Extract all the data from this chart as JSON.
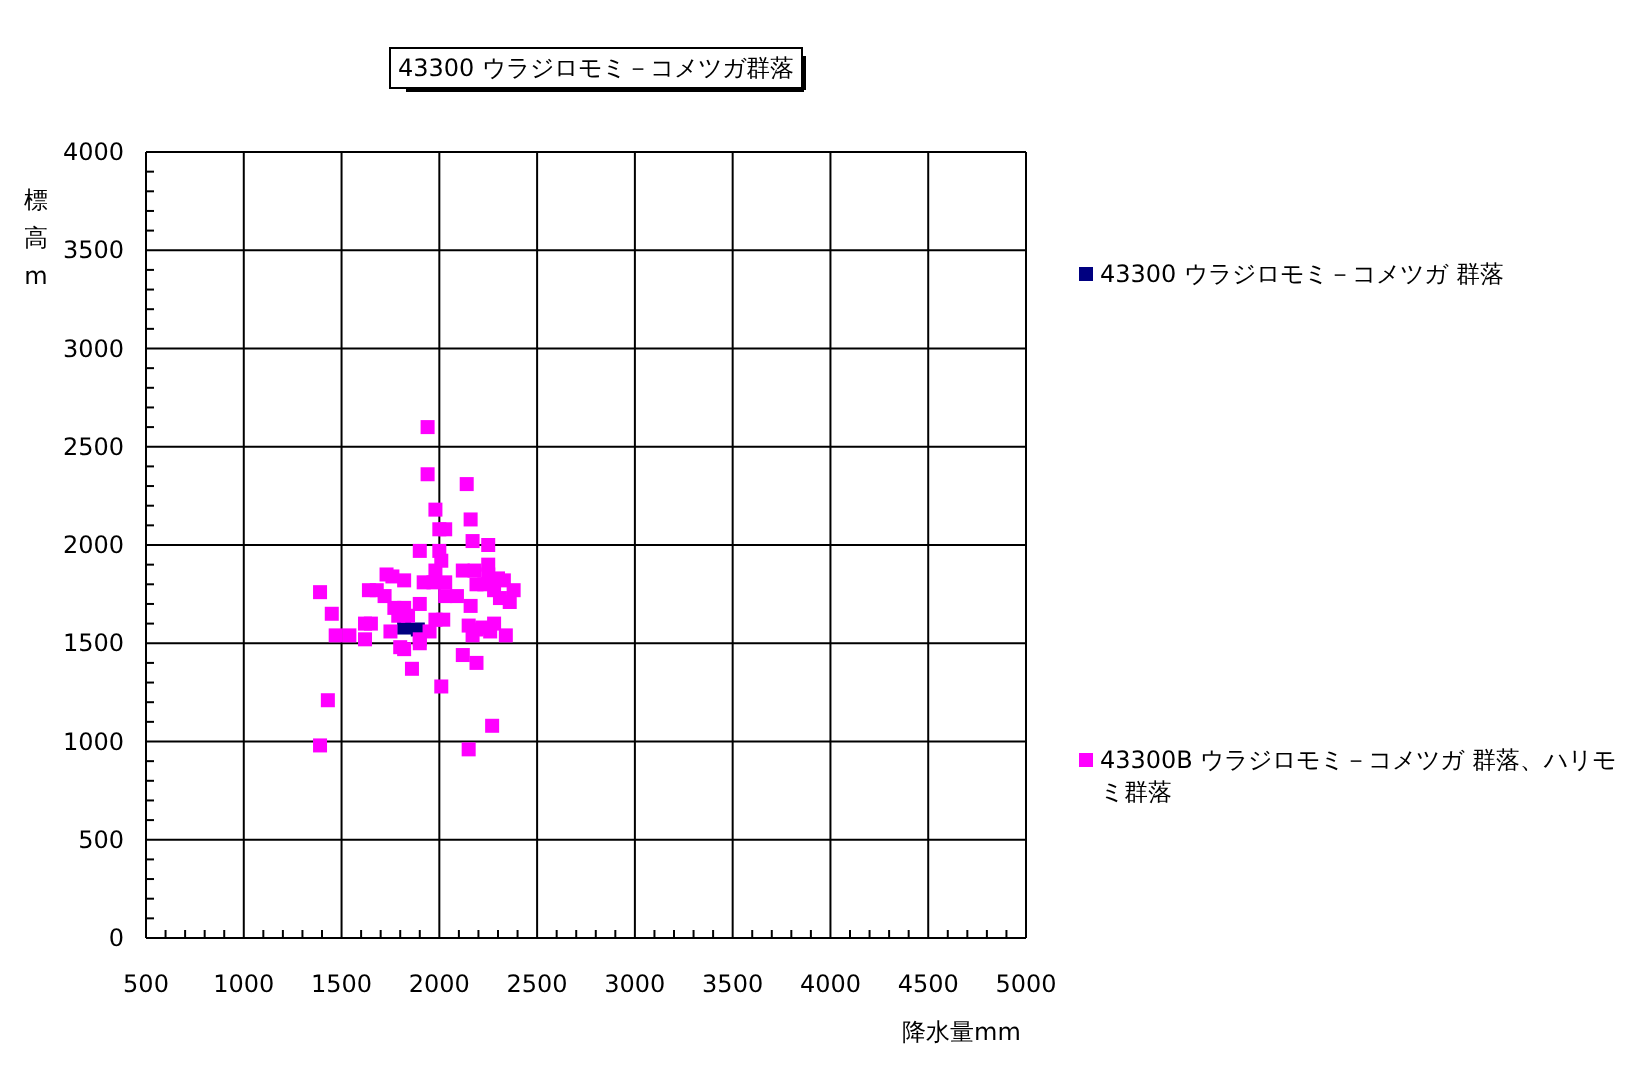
{
  "chart_data": {
    "type": "scatter",
    "title": "43300 ウラジロモミ－コメツガ群落",
    "xlabel": "降水量mm",
    "ylabel": "標高m",
    "xlim": [
      500,
      5000
    ],
    "ylim": [
      0,
      4000
    ],
    "xticks": [
      500,
      1000,
      1500,
      2000,
      2500,
      3000,
      3500,
      4000,
      4500,
      5000
    ],
    "yticks": [
      0,
      500,
      1000,
      1500,
      2000,
      2500,
      3000,
      3500,
      4000
    ],
    "grid": true,
    "legend": "right",
    "marker": "square",
    "series": [
      {
        "name": "43300 ウラジロモミ－コメツガ 群落",
        "color": "#000080",
        "x": [
          1820,
          1890
        ],
        "values": [
          1580,
          1570
        ]
      },
      {
        "name": "43300B ウラジロモミ－コメツガ 群落、ハリモミ群落",
        "color": "#ff00ff",
        "x": [
          1940,
          1940,
          2140,
          1980,
          2160,
          2000,
          2030,
          2170,
          2250,
          1900,
          2000,
          2010,
          2120,
          2180,
          2250,
          2250,
          1980,
          1730,
          1760,
          1820,
          1920,
          1970,
          2030,
          2190,
          2230,
          2300,
          2330,
          2280,
          2380,
          2310,
          2360,
          2030,
          2090,
          1390,
          1640,
          1680,
          1720,
          1770,
          1820,
          1790,
          1840,
          1900,
          2160,
          1450,
          1620,
          1650,
          1980,
          2020,
          1950,
          1750,
          1470,
          1540,
          1620,
          2150,
          2190,
          2170,
          2220,
          2260,
          2280,
          2340,
          1800,
          1820,
          1900,
          1900,
          1860,
          2120,
          2190,
          2010,
          1430,
          2270,
          1390,
          2150
        ],
        "values": [
          2600,
          2360,
          2310,
          2180,
          2130,
          2080,
          2080,
          2020,
          2000,
          1970,
          1970,
          1920,
          1870,
          1870,
          1900,
          1850,
          1870,
          1850,
          1840,
          1820,
          1810,
          1810,
          1810,
          1800,
          1800,
          1830,
          1820,
          1770,
          1770,
          1730,
          1710,
          1740,
          1740,
          1760,
          1770,
          1770,
          1740,
          1680,
          1680,
          1640,
          1640,
          1700,
          1690,
          1650,
          1600,
          1600,
          1620,
          1620,
          1560,
          1560,
          1540,
          1540,
          1520,
          1590,
          1570,
          1540,
          1580,
          1560,
          1600,
          1540,
          1480,
          1470,
          1520,
          1500,
          1370,
          1440,
          1400,
          1280,
          1210,
          1080,
          980,
          960
        ]
      }
    ]
  }
}
